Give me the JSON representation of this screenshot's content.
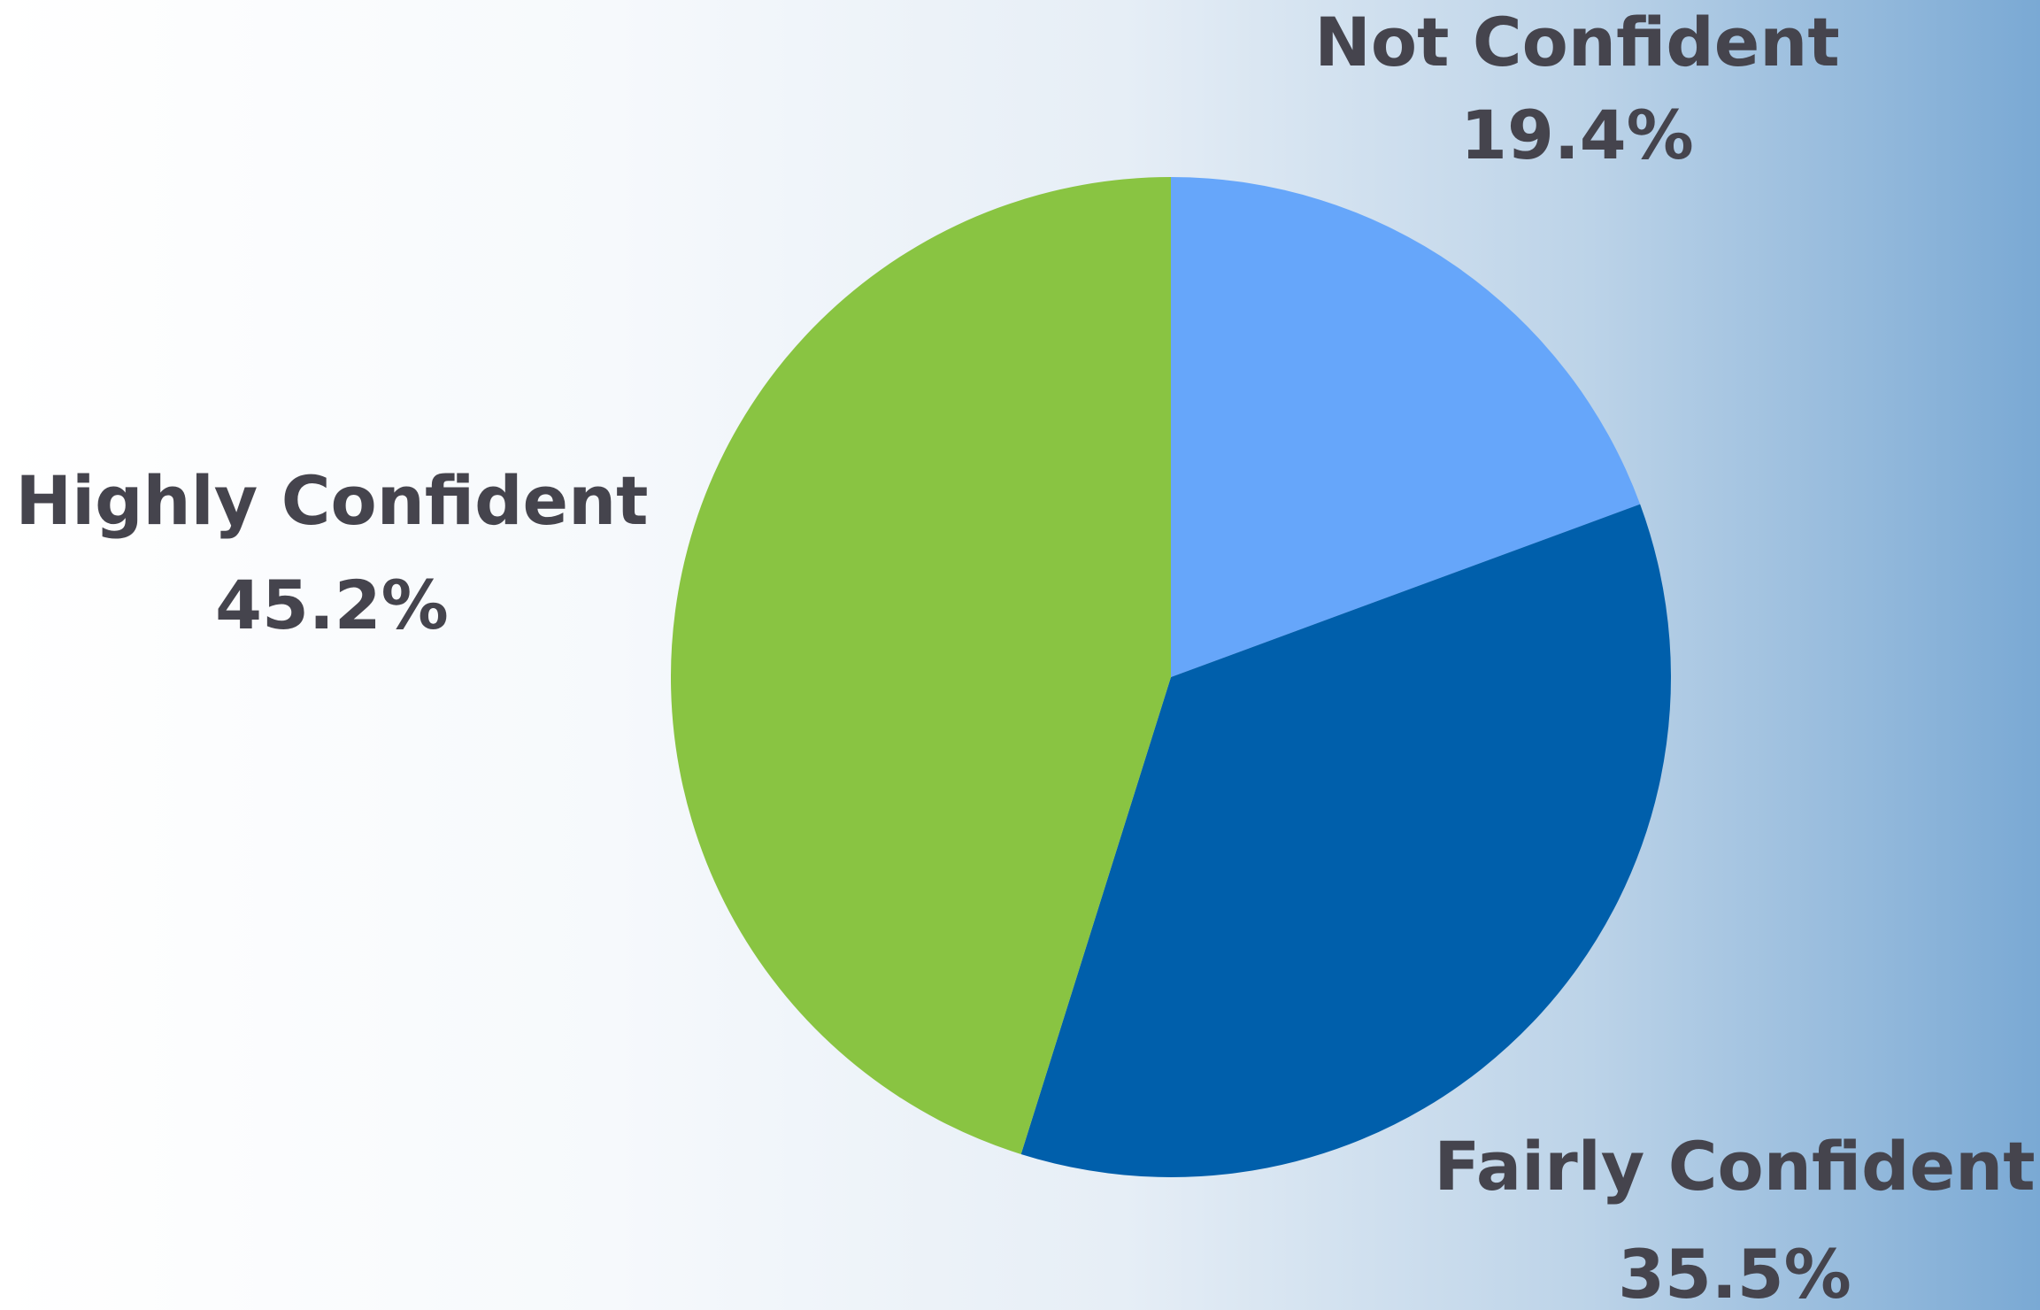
{
  "chart_data": {
    "type": "pie",
    "categories": [
      "Not Confident",
      "Fairly Confident",
      "Highly Confident"
    ],
    "values": [
      19.4,
      35.5,
      45.2
    ],
    "value_labels": [
      "19.4%",
      "35.5%",
      "45.2%"
    ],
    "colors": [
      "#66a6fa",
      "#005fab",
      "#89c442"
    ],
    "label_color": "#45444d",
    "title": "",
    "legend": "none"
  }
}
